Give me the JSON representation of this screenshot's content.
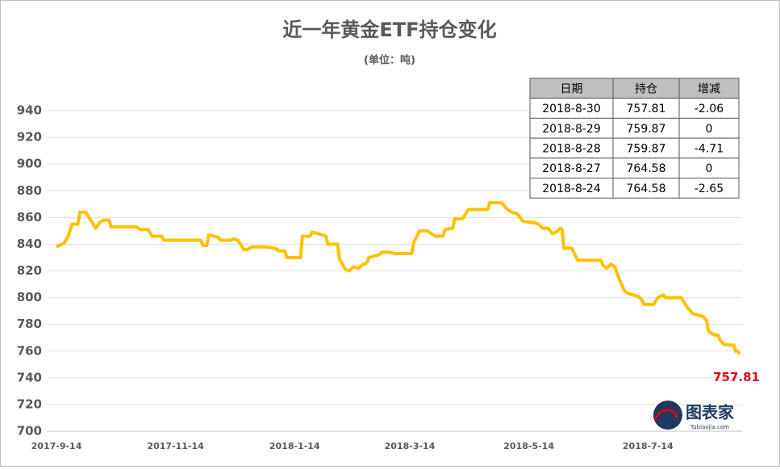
{
  "chart_data": {
    "type": "line",
    "title": "近一年黄金ETF持仓变化",
    "subtitle": "(单位：吨)",
    "x": [
      "2017-9-14",
      "2017-9-18",
      "2017-9-20",
      "2017-9-22",
      "2017-9-25",
      "2017-9-26",
      "2017-9-29",
      "2017-10-2",
      "2017-10-4",
      "2017-10-6",
      "2017-10-8",
      "2017-10-11",
      "2017-10-12",
      "2017-10-25",
      "2017-10-27",
      "2017-10-31",
      "2017-11-2",
      "2017-11-7",
      "2017-11-8",
      "2017-11-27",
      "2017-11-28",
      "2017-11-30",
      "2017-12-1",
      "2017-12-6",
      "2017-12-7",
      "2017-12-12",
      "2017-12-14",
      "2017-12-16",
      "2017-12-19",
      "2017-12-21",
      "2017-12-23",
      "2017-12-30",
      "2018-1-4",
      "2018-1-6",
      "2018-1-9",
      "2018-1-10",
      "2018-1-17",
      "2018-1-18",
      "2018-1-22",
      "2018-1-23",
      "2018-1-26",
      "2018-1-30",
      "2018-1-31",
      "2018-2-5",
      "2018-2-6",
      "2018-2-9",
      "2018-2-11",
      "2018-2-13",
      "2018-2-16",
      "2018-2-17",
      "2018-2-20",
      "2018-2-21",
      "2018-2-26",
      "2018-2-28",
      "2018-3-4",
      "2018-3-6",
      "2018-3-15",
      "2018-3-16",
      "2018-3-19",
      "2018-3-23",
      "2018-3-27",
      "2018-3-31",
      "2018-4-1",
      "2018-4-5",
      "2018-4-6",
      "2018-4-10",
      "2018-4-13",
      "2018-4-23",
      "2018-4-24",
      "2018-4-30",
      "2018-5-3",
      "2018-5-5",
      "2018-5-8",
      "2018-5-11",
      "2018-5-17",
      "2018-5-19",
      "2018-5-21",
      "2018-5-24",
      "2018-5-26",
      "2018-5-28",
      "2018-5-30",
      "2018-5-31",
      "2018-6-1",
      "2018-6-5",
      "2018-6-8",
      "2018-6-20",
      "2018-6-21",
      "2018-6-23",
      "2018-6-25",
      "2018-6-27",
      "2018-6-29",
      "2018-7-2",
      "2018-7-4",
      "2018-7-9",
      "2018-7-11",
      "2018-7-12",
      "2018-7-17",
      "2018-7-19",
      "2018-7-22",
      "2018-7-23",
      "2018-7-31",
      "2018-8-3",
      "2018-8-6",
      "2018-8-11",
      "2018-8-13",
      "2018-8-14",
      "2018-8-17",
      "2018-8-19",
      "2018-8-20",
      "2018-8-22",
      "2018-8-24",
      "2018-8-27",
      "2018-8-28",
      "2018-8-29",
      "2018-8-30"
    ],
    "values": [
      838,
      841,
      846,
      855,
      855,
      864,
      864,
      857,
      852,
      856,
      858,
      858,
      853,
      853,
      851,
      851,
      846,
      846,
      843,
      843,
      839,
      839,
      847,
      845,
      843,
      843,
      844,
      843,
      836,
      836,
      838,
      838,
      837,
      835,
      835,
      830,
      830,
      846,
      846,
      849,
      848,
      846,
      840,
      840,
      829,
      821,
      820,
      823,
      822,
      824,
      826,
      830,
      832,
      834,
      834,
      833,
      833,
      841,
      850,
      850,
      846,
      846,
      851,
      852,
      859,
      859,
      866,
      866,
      871,
      871,
      866,
      864,
      863,
      857,
      856,
      855,
      852,
      852,
      848,
      849,
      852,
      851,
      837,
      837,
      828,
      828,
      824,
      822,
      825,
      823,
      815,
      805,
      803,
      801,
      798,
      795,
      795,
      800,
      802,
      800,
      800,
      793,
      788,
      786,
      783,
      775,
      772,
      772,
      768,
      765,
      764.58,
      764.58,
      759.87,
      759.87,
      757.81
    ],
    "color": "#ffc000",
    "xlim": [
      "2017-9-14",
      "2018-8-30"
    ],
    "xticks": [
      "2017-9-14",
      "2017-11-14",
      "2018-1-14",
      "2018-3-14",
      "2018-5-14",
      "2018-7-14"
    ],
    "ylim": [
      700,
      940
    ],
    "yticks": [
      700,
      720,
      740,
      760,
      780,
      800,
      820,
      840,
      860,
      880,
      900,
      920,
      940
    ],
    "grid": true,
    "label_last_point": true,
    "label_color": "#e60012"
  },
  "table": {
    "columns": [
      "日期",
      "持仓",
      "增减"
    ],
    "rows": [
      [
        "2018-8-30",
        "757.81",
        "-2.06"
      ],
      [
        "2018-8-29",
        "759.87",
        "0"
      ],
      [
        "2018-8-28",
        "759.87",
        "-4.71"
      ],
      [
        "2018-8-27",
        "764.58",
        "0"
      ],
      [
        "2018-8-24",
        "764.58",
        "-2.65"
      ]
    ]
  },
  "logo": {
    "name": "图表家",
    "site": "Tubiaojia.com"
  }
}
